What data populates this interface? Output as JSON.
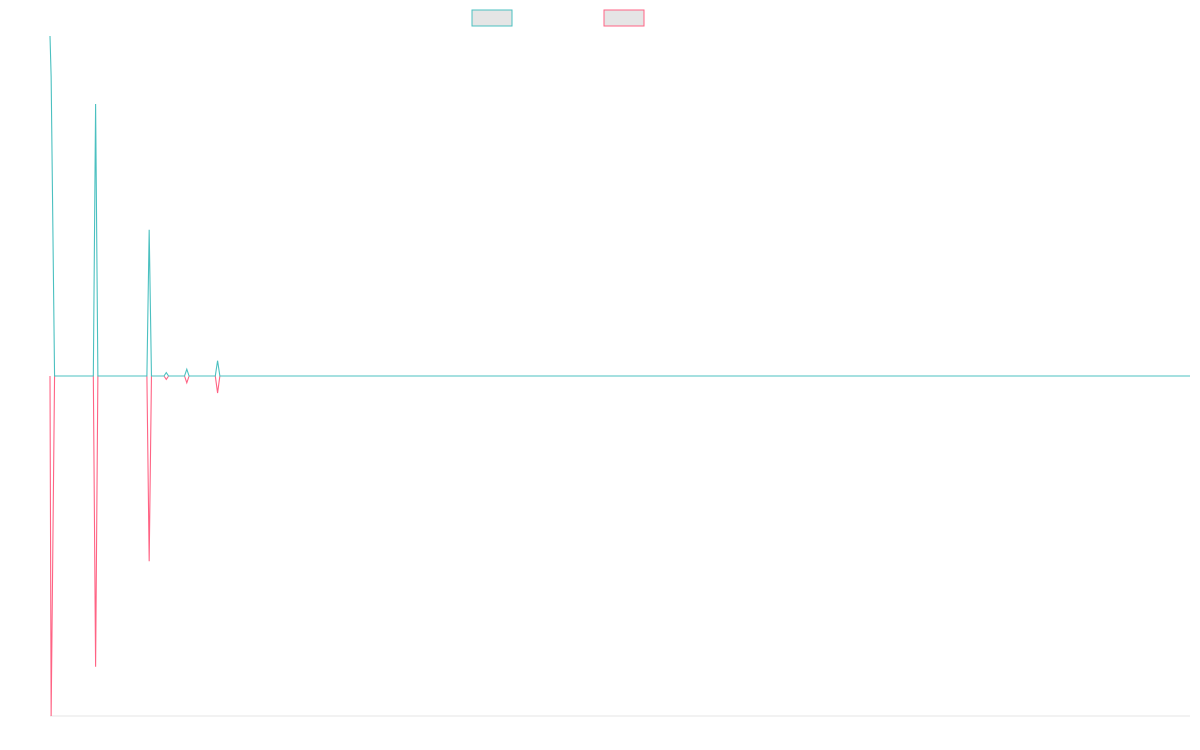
{
  "chart_data": {
    "type": "line",
    "title": "",
    "xlabel": "",
    "ylabel": "",
    "grid": false,
    "legend": {
      "placement": "top-center",
      "labels_shown": false
    },
    "colors": {
      "series_a": "#4bc0c0",
      "series_b": "#ff6384",
      "legend_fill": "#e5e5e5",
      "axis": "#e4e4e4"
    },
    "x": [
      0,
      0.5,
      1,
      1.5,
      1000
    ],
    "xlim": [
      0,
      1000
    ],
    "ylim": [
      -1,
      1
    ],
    "series": [
      {
        "points": [
          [
            0,
            1.0
          ],
          [
            1,
            0.88
          ],
          [
            4,
            0.0
          ],
          [
            38,
            0.0
          ],
          [
            40,
            0.8
          ],
          [
            42,
            0.0
          ],
          [
            85,
            0.0
          ],
          [
            87,
            0.43
          ],
          [
            89,
            0.0
          ],
          [
            100,
            0.0
          ],
          [
            102,
            0.01
          ],
          [
            104,
            0.0
          ],
          [
            118,
            0.0
          ],
          [
            120,
            0.02
          ],
          [
            122,
            0.0
          ],
          [
            145,
            0.0
          ],
          [
            147,
            0.045
          ],
          [
            149,
            0.0
          ],
          [
            1000,
            0.0
          ]
        ]
      },
      {
        "points": [
          [
            0,
            0.0
          ],
          [
            1,
            -1.0
          ],
          [
            4,
            0.0
          ],
          [
            38,
            0.0
          ],
          [
            40,
            -0.855
          ],
          [
            42,
            0.0
          ],
          [
            85,
            0.0
          ],
          [
            87,
            -0.545
          ],
          [
            89,
            0.0
          ],
          [
            100,
            0.0
          ],
          [
            102,
            -0.01
          ],
          [
            104,
            0.0
          ],
          [
            118,
            0.0
          ],
          [
            120,
            -0.02
          ],
          [
            122,
            0.0
          ],
          [
            145,
            0.0
          ],
          [
            147,
            -0.05
          ],
          [
            149,
            0.0
          ],
          [
            1000,
            0.0
          ]
        ]
      }
    ]
  }
}
